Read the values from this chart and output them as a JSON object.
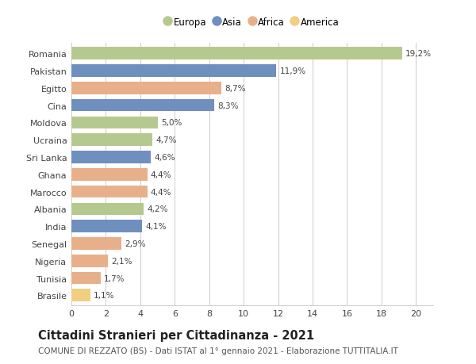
{
  "countries": [
    "Romania",
    "Pakistan",
    "Egitto",
    "Cina",
    "Moldova",
    "Ucraina",
    "Sri Lanka",
    "Ghana",
    "Marocco",
    "Albania",
    "India",
    "Senegal",
    "Nigeria",
    "Tunisia",
    "Brasile"
  ],
  "values": [
    19.2,
    11.9,
    8.7,
    8.3,
    5.0,
    4.7,
    4.6,
    4.4,
    4.4,
    4.2,
    4.1,
    2.9,
    2.1,
    1.7,
    1.1
  ],
  "labels": [
    "19,2%",
    "11,9%",
    "8,7%",
    "8,3%",
    "5,0%",
    "4,7%",
    "4,6%",
    "4,4%",
    "4,4%",
    "4,2%",
    "4,1%",
    "2,9%",
    "2,1%",
    "1,7%",
    "1,1%"
  ],
  "continents": [
    "Europa",
    "Asia",
    "Africa",
    "Asia",
    "Europa",
    "Europa",
    "Asia",
    "Africa",
    "Africa",
    "Europa",
    "Asia",
    "Africa",
    "Africa",
    "Africa",
    "America"
  ],
  "continent_colors": {
    "Europa": "#b5c98e",
    "Asia": "#6f8fbf",
    "Africa": "#e8b08a",
    "America": "#f0cf80"
  },
  "legend_order": [
    "Europa",
    "Asia",
    "Africa",
    "America"
  ],
  "title": "Cittadini Stranieri per Cittadinanza - 2021",
  "subtitle": "COMUNE DI REZZATO (BS) - Dati ISTAT al 1° gennaio 2021 - Elaborazione TUTTITALIA.IT",
  "xlim": [
    0,
    21
  ],
  "xticks": [
    0,
    2,
    4,
    6,
    8,
    10,
    12,
    14,
    16,
    18,
    20
  ],
  "background_color": "#ffffff",
  "grid_color": "#cccccc",
  "bar_height": 0.72,
  "title_fontsize": 10.5,
  "subtitle_fontsize": 7.5,
  "label_fontsize": 7.5,
  "tick_fontsize": 8,
  "legend_fontsize": 8.5
}
